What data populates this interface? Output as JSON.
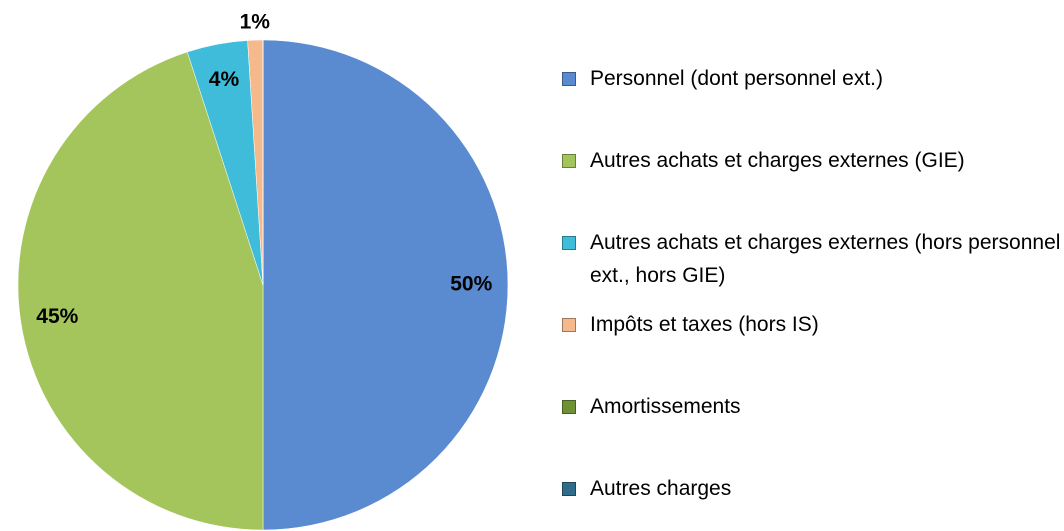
{
  "chart_data": {
    "type": "pie",
    "categories": [
      "Personnel (dont personnel ext.)",
      "Autres achats et charges externes (GIE)",
      "Autres achats et charges externes (hors personnel ext., hors GIE)",
      "Impôts et taxes (hors IS)",
      "Amortissements",
      "Autres charges"
    ],
    "values": [
      50,
      45,
      4,
      1,
      0,
      0
    ],
    "value_labels": [
      "50%",
      "45%",
      "4%",
      "1%",
      null,
      null
    ],
    "colors": [
      "#5a8ad0",
      "#a4c55c",
      "#3fbcd9",
      "#f5b98c",
      "#6f9135",
      "#2f6d8a"
    ],
    "legend": "right"
  }
}
